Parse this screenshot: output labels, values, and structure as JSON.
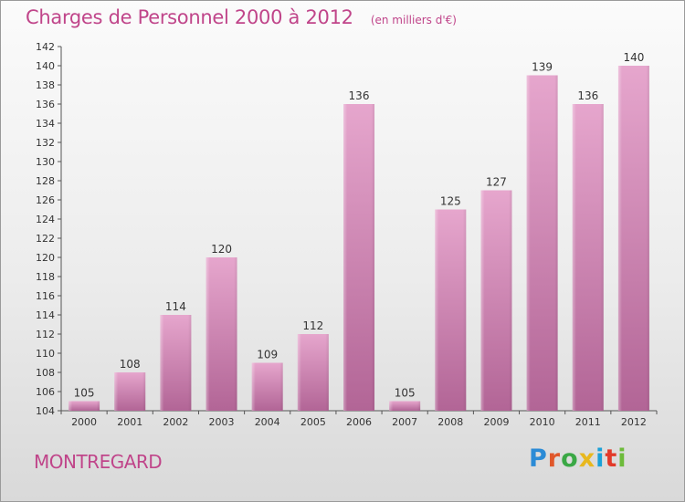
{
  "header": {
    "title": "Charges de Personnel 2000 à 2012",
    "subtitle": "(en milliers d'€)"
  },
  "footer": {
    "commune": "MONTREGARD",
    "logo_text": "Proxiti",
    "logo_colors": [
      "#2b8bd6",
      "#e0572a",
      "#3aa845",
      "#e8b81e",
      "#1aa1d8",
      "#e23a2a",
      "#6dbb3a"
    ]
  },
  "chart_data": {
    "type": "bar",
    "categories": [
      "2000",
      "2001",
      "2002",
      "2003",
      "2004",
      "2005",
      "2006",
      "2007",
      "2008",
      "2009",
      "2010",
      "2011",
      "2012"
    ],
    "values": [
      105,
      108,
      114,
      120,
      109,
      112,
      136,
      105,
      125,
      127,
      139,
      136,
      140
    ],
    "ylim": [
      104,
      142
    ],
    "yticks": [
      104,
      106,
      108,
      110,
      112,
      114,
      116,
      118,
      120,
      122,
      124,
      126,
      128,
      130,
      132,
      134,
      136,
      138,
      140,
      142
    ],
    "grid": false,
    "colors": {
      "bar_top": "#e6a6cd",
      "bar_bottom": "#b26596",
      "axis": "#555555"
    }
  }
}
